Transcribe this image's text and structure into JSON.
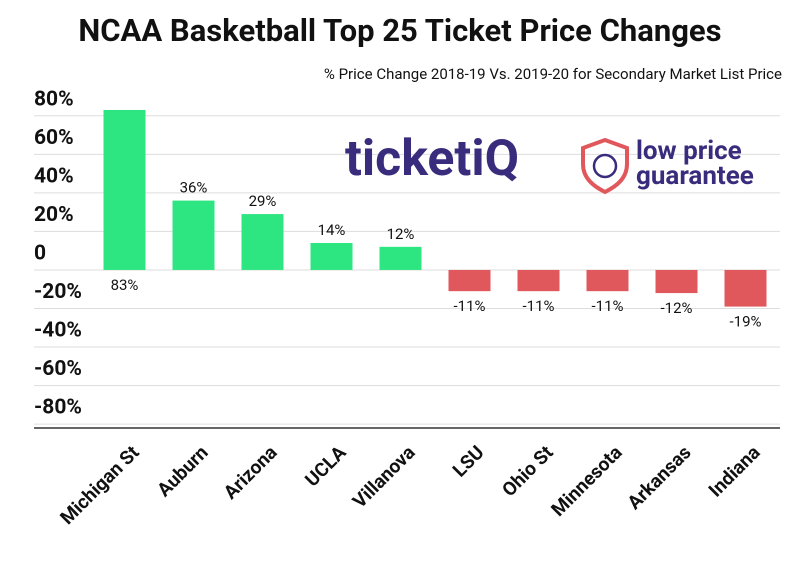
{
  "chart_data": {
    "type": "bar",
    "title": "NCAA Basketball Top 25 Ticket Price Changes",
    "subtitle": "% Price Change 2018-19 Vs. 2019-20  for Secondary Market List Price",
    "categories": [
      "Michigan St",
      "Auburn",
      "Arizona",
      "UCLA",
      "Villanova",
      "LSU",
      "Ohio St",
      "Minnesota",
      "Arkansas",
      "Indiana"
    ],
    "values": [
      83,
      36,
      29,
      14,
      12,
      -11,
      -11,
      -11,
      -12,
      -19
    ],
    "value_labels": [
      "83%",
      "36%",
      "29%",
      "14%",
      "12%",
      "-11%",
      "-11%",
      "-11%",
      "-12%",
      "-19%"
    ],
    "colors": [
      "#2ee681",
      "#2ee681",
      "#2ee681",
      "#2ee681",
      "#2ee681",
      "#e0575c",
      "#e0575c",
      "#e0575c",
      "#e0575c",
      "#e0575c"
    ],
    "ylim": [
      -82,
      83
    ],
    "yticks": [
      {
        "value": 80,
        "label": "80%"
      },
      {
        "value": 60,
        "label": "60%"
      },
      {
        "value": 40,
        "label": "40%"
      },
      {
        "value": 20,
        "label": "20%"
      },
      0,
      {
        "value": -20,
        "label": "-20%"
      },
      {
        "value": -40,
        "label": "-40%"
      },
      {
        "value": -60,
        "label": "-60%"
      },
      {
        "value": -80,
        "label": "-80%"
      }
    ],
    "grid": true,
    "logo": {
      "brand": "ticketiQ",
      "tagline": [
        "low price",
        "guarantee"
      ]
    }
  }
}
